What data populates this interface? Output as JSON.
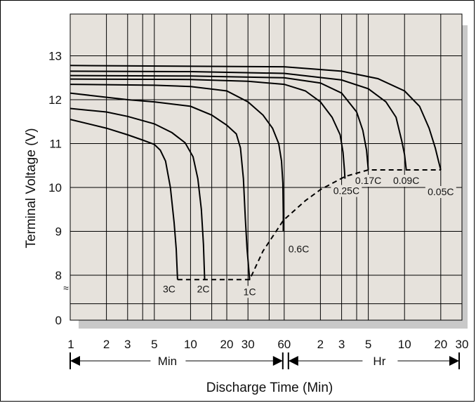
{
  "chart_data": {
    "type": "line",
    "title": "",
    "ylabel": "Terminal Voltage (V)",
    "xlabel": "Discharge Time (Min)",
    "ylim": [
      0,
      14
    ],
    "y_axis_break": "≈",
    "y_ticks": [
      "0",
      "8",
      "9",
      "10",
      "11",
      "12",
      "13"
    ],
    "x_ticks": [
      "1",
      "2",
      "3",
      "5",
      "10",
      "20",
      "30",
      "60",
      "2",
      "3",
      "5",
      "10",
      "20",
      "30"
    ],
    "x_unit_labels": {
      "min": "Min",
      "hr": "Hr"
    },
    "grid": true,
    "series": [
      {
        "name": "3C",
        "points": [
          [
            1,
            11.55
          ],
          [
            2,
            11.35
          ],
          [
            3,
            11.2
          ],
          [
            4,
            11.08
          ],
          [
            5,
            10.98
          ],
          [
            5.6,
            10.85
          ],
          [
            6.2,
            10.6
          ],
          [
            6.8,
            10.0
          ],
          [
            7.3,
            9.2
          ],
          [
            7.6,
            8.6
          ],
          [
            7.8,
            7.9
          ]
        ]
      },
      {
        "name": "2C",
        "points": [
          [
            1,
            11.8
          ],
          [
            2,
            11.72
          ],
          [
            3,
            11.62
          ],
          [
            5,
            11.45
          ],
          [
            7,
            11.25
          ],
          [
            9,
            11.02
          ],
          [
            10.5,
            10.7
          ],
          [
            11.5,
            10.2
          ],
          [
            12.3,
            9.5
          ],
          [
            12.8,
            8.7
          ],
          [
            13.1,
            7.9
          ]
        ]
      },
      {
        "name": "1C",
        "points": [
          [
            1,
            12.15
          ],
          [
            3,
            12.0
          ],
          [
            5,
            11.95
          ],
          [
            10,
            11.85
          ],
          [
            15,
            11.65
          ],
          [
            20,
            11.42
          ],
          [
            24,
            11.22
          ],
          [
            26,
            10.9
          ],
          [
            27.5,
            10.2
          ],
          [
            28.5,
            9.3
          ],
          [
            29.5,
            8.6
          ],
          [
            31,
            7.9
          ]
        ]
      },
      {
        "name": "0.6C",
        "points": [
          [
            1,
            12.35
          ],
          [
            5,
            12.33
          ],
          [
            10,
            12.3
          ],
          [
            20,
            12.2
          ],
          [
            30,
            11.95
          ],
          [
            40,
            11.65
          ],
          [
            48,
            11.35
          ],
          [
            54,
            11.0
          ],
          [
            57,
            10.6
          ],
          [
            58.5,
            10.1
          ],
          [
            59,
            9.4
          ],
          [
            59,
            9.0
          ]
        ]
      },
      {
        "name": "0.25C",
        "points": [
          [
            1,
            12.47
          ],
          [
            10,
            12.46
          ],
          [
            30,
            12.42
          ],
          [
            60,
            12.35
          ],
          [
            90,
            12.2
          ],
          [
            120,
            11.95
          ],
          [
            150,
            11.6
          ],
          [
            175,
            11.2
          ],
          [
            185,
            10.8
          ],
          [
            190,
            10.4
          ],
          [
            192,
            10.2
          ]
        ]
      },
      {
        "name": "0.17C",
        "points": [
          [
            1,
            12.55
          ],
          [
            10,
            12.54
          ],
          [
            60,
            12.5
          ],
          [
            120,
            12.38
          ],
          [
            180,
            12.15
          ],
          [
            240,
            11.72
          ],
          [
            270,
            11.3
          ],
          [
            290,
            10.85
          ],
          [
            300,
            10.4
          ]
        ]
      },
      {
        "name": "0.09C",
        "points": [
          [
            1,
            12.65
          ],
          [
            10,
            12.64
          ],
          [
            60,
            12.6
          ],
          [
            180,
            12.45
          ],
          [
            300,
            12.25
          ],
          [
            420,
            11.95
          ],
          [
            510,
            11.6
          ],
          [
            570,
            11.05
          ],
          [
            600,
            10.75
          ],
          [
            620,
            10.4
          ]
        ]
      },
      {
        "name": "0.05C",
        "points": [
          [
            1,
            12.78
          ],
          [
            60,
            12.75
          ],
          [
            180,
            12.65
          ],
          [
            360,
            12.48
          ],
          [
            600,
            12.2
          ],
          [
            800,
            11.85
          ],
          [
            960,
            11.35
          ],
          [
            1080,
            10.9
          ],
          [
            1150,
            10.6
          ],
          [
            1200,
            10.4
          ]
        ]
      }
    ],
    "cutoff_curve": [
      [
        7.8,
        7.9
      ],
      [
        31,
        7.9
      ],
      [
        40,
        8.55
      ],
      [
        50,
        8.95
      ],
      [
        59,
        9.25
      ],
      [
        90,
        9.7
      ],
      [
        120,
        9.95
      ],
      [
        192,
        10.25
      ],
      [
        300,
        10.4
      ],
      [
        620,
        10.4
      ],
      [
        1200,
        10.4
      ]
    ]
  }
}
